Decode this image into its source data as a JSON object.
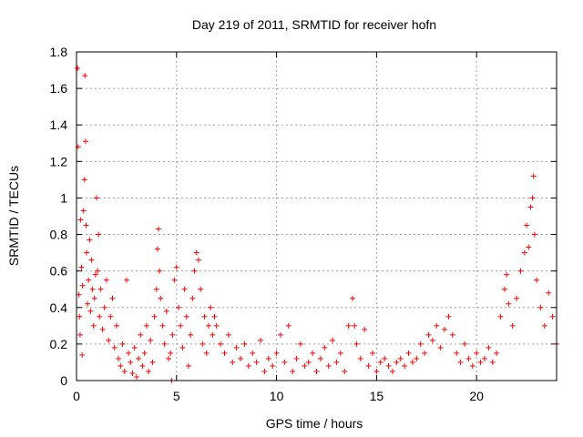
{
  "chart_data": {
    "type": "scatter",
    "title": "Day 219 of 2011, SRMTID for receiver hofn",
    "xlabel": "GPS time / hours",
    "ylabel": "SRMTID / TECUs",
    "xlim": [
      0,
      24
    ],
    "ylim": [
      0,
      1.8
    ],
    "x_ticks": [
      0,
      5,
      10,
      15,
      20
    ],
    "y_ticks": [
      0,
      0.2,
      0.4,
      0.6,
      0.8,
      1,
      1.2,
      1.4,
      1.6,
      1.8
    ],
    "grid": true,
    "legend": "none",
    "series": [
      {
        "color": "#ff0000",
        "marker": "plus",
        "points": [
          [
            0.05,
            1.71
          ],
          [
            0.08,
            1.28
          ],
          [
            0.12,
            0.47
          ],
          [
            0.15,
            0.35
          ],
          [
            0.18,
            0.25
          ],
          [
            0.2,
            0.88
          ],
          [
            0.25,
            0.62
          ],
          [
            0.28,
            0.14
          ],
          [
            0.3,
            0.52
          ],
          [
            0.35,
            0.93
          ],
          [
            0.4,
            1.1
          ],
          [
            0.42,
            1.67
          ],
          [
            0.45,
            1.31
          ],
          [
            0.48,
            0.85
          ],
          [
            0.5,
            0.7
          ],
          [
            0.55,
            0.42
          ],
          [
            0.6,
            0.55
          ],
          [
            0.65,
            0.77
          ],
          [
            0.7,
            0.38
          ],
          [
            0.75,
            0.66
          ],
          [
            0.8,
            0.5
          ],
          [
            0.85,
            0.3
          ],
          [
            0.9,
            0.45
          ],
          [
            0.95,
            0.58
          ],
          [
            1.0,
            1.0
          ],
          [
            1.05,
            0.6
          ],
          [
            1.1,
            0.8
          ],
          [
            1.15,
            0.35
          ],
          [
            1.2,
            0.5
          ],
          [
            1.3,
            0.28
          ],
          [
            1.4,
            0.4
          ],
          [
            1.5,
            0.55
          ],
          [
            1.6,
            0.22
          ],
          [
            1.7,
            0.35
          ],
          [
            1.8,
            0.45
          ],
          [
            1.9,
            0.18
          ],
          [
            2.0,
            0.3
          ],
          [
            2.1,
            0.12
          ],
          [
            2.2,
            0.08
          ],
          [
            2.3,
            0.2
          ],
          [
            2.4,
            0.05
          ],
          [
            2.5,
            0.55
          ],
          [
            2.6,
            0.15
          ],
          [
            2.7,
            0.1
          ],
          [
            2.8,
            0.04
          ],
          [
            2.9,
            0.18
          ],
          [
            3.0,
            0.02
          ],
          [
            3.1,
            0.12
          ],
          [
            3.2,
            0.25
          ],
          [
            3.3,
            0.08
          ],
          [
            3.4,
            0.15
          ],
          [
            3.5,
            0.3
          ],
          [
            3.6,
            0.05
          ],
          [
            3.7,
            0.22
          ],
          [
            3.8,
            0.1
          ],
          [
            3.9,
            0.35
          ],
          [
            4.0,
            0.5
          ],
          [
            4.05,
            0.72
          ],
          [
            4.1,
            0.83
          ],
          [
            4.15,
            0.6
          ],
          [
            4.2,
            0.45
          ],
          [
            4.3,
            0.3
          ],
          [
            4.4,
            0.2
          ],
          [
            4.5,
            0.38
          ],
          [
            4.6,
            0.12
          ],
          [
            4.7,
            0.15
          ],
          [
            4.75,
            0.0
          ],
          [
            4.8,
            0.25
          ],
          [
            4.9,
            0.55
          ],
          [
            5.0,
            0.62
          ],
          [
            5.1,
            0.4
          ],
          [
            5.2,
            0.3
          ],
          [
            5.3,
            0.18
          ],
          [
            5.4,
            0.5
          ],
          [
            5.5,
            0.35
          ],
          [
            5.6,
            0.08
          ],
          [
            5.7,
            0.25
          ],
          [
            5.8,
            0.45
          ],
          [
            5.9,
            0.6
          ],
          [
            6.0,
            0.7
          ],
          [
            6.1,
            0.66
          ],
          [
            6.2,
            0.5
          ],
          [
            6.3,
            0.2
          ],
          [
            6.4,
            0.35
          ],
          [
            6.5,
            0.15
          ],
          [
            6.6,
            0.3
          ],
          [
            6.7,
            0.4
          ],
          [
            6.8,
            0.25
          ],
          [
            6.9,
            0.35
          ],
          [
            7.0,
            0.3
          ],
          [
            7.2,
            0.2
          ],
          [
            7.4,
            0.15
          ],
          [
            7.6,
            0.25
          ],
          [
            7.8,
            0.1
          ],
          [
            8.0,
            0.18
          ],
          [
            8.2,
            0.12
          ],
          [
            8.4,
            0.2
          ],
          [
            8.6,
            0.08
          ],
          [
            8.8,
            0.15
          ],
          [
            9.0,
            0.1
          ],
          [
            9.2,
            0.22
          ],
          [
            9.4,
            0.05
          ],
          [
            9.6,
            0.12
          ],
          [
            9.8,
            0.08
          ],
          [
            10.0,
            0.15
          ],
          [
            10.2,
            0.25
          ],
          [
            10.4,
            0.1
          ],
          [
            10.6,
            0.3
          ],
          [
            10.8,
            0.05
          ],
          [
            11.0,
            0.12
          ],
          [
            11.2,
            0.2
          ],
          [
            11.4,
            0.08
          ],
          [
            11.6,
            0.1
          ],
          [
            11.8,
            0.15
          ],
          [
            12.0,
            0.05
          ],
          [
            12.2,
            0.12
          ],
          [
            12.4,
            0.18
          ],
          [
            12.6,
            0.08
          ],
          [
            12.8,
            0.22
          ],
          [
            13.0,
            0.1
          ],
          [
            13.2,
            0.15
          ],
          [
            13.4,
            0.05
          ],
          [
            13.6,
            0.3
          ],
          [
            13.8,
            0.45
          ],
          [
            13.9,
            0.3
          ],
          [
            14.0,
            0.2
          ],
          [
            14.2,
            0.12
          ],
          [
            14.4,
            0.28
          ],
          [
            14.6,
            0.08
          ],
          [
            14.8,
            0.15
          ],
          [
            15.0,
            0.05
          ],
          [
            15.2,
            0.1
          ],
          [
            15.4,
            0.12
          ],
          [
            15.6,
            0.08
          ],
          [
            15.8,
            0.05
          ],
          [
            16.0,
            0.1
          ],
          [
            16.2,
            0.12
          ],
          [
            16.4,
            0.08
          ],
          [
            16.6,
            0.15
          ],
          [
            16.8,
            0.1
          ],
          [
            17.0,
            0.12
          ],
          [
            17.2,
            0.2
          ],
          [
            17.4,
            0.15
          ],
          [
            17.6,
            0.25
          ],
          [
            17.8,
            0.22
          ],
          [
            18.0,
            0.3
          ],
          [
            18.2,
            0.18
          ],
          [
            18.4,
            0.28
          ],
          [
            18.6,
            0.35
          ],
          [
            18.8,
            0.25
          ],
          [
            19.0,
            0.15
          ],
          [
            19.2,
            0.1
          ],
          [
            19.4,
            0.2
          ],
          [
            19.6,
            0.12
          ],
          [
            19.8,
            0.08
          ],
          [
            20.0,
            0.15
          ],
          [
            20.2,
            0.1
          ],
          [
            20.4,
            0.12
          ],
          [
            20.6,
            0.18
          ],
          [
            20.8,
            0.1
          ],
          [
            21.0,
            0.15
          ],
          [
            21.2,
            0.35
          ],
          [
            21.4,
            0.5
          ],
          [
            21.5,
            0.58
          ],
          [
            21.6,
            0.42
          ],
          [
            21.8,
            0.3
          ],
          [
            22.0,
            0.45
          ],
          [
            22.2,
            0.6
          ],
          [
            22.4,
            0.7
          ],
          [
            22.5,
            0.85
          ],
          [
            22.6,
            0.73
          ],
          [
            22.7,
            0.95
          ],
          [
            22.8,
            1.0
          ],
          [
            22.85,
            1.12
          ],
          [
            22.9,
            0.8
          ],
          [
            23.0,
            0.55
          ],
          [
            23.2,
            0.4
          ],
          [
            23.4,
            0.3
          ],
          [
            23.6,
            0.48
          ],
          [
            23.8,
            0.35
          ],
          [
            24.0,
            0.2
          ]
        ]
      }
    ]
  }
}
